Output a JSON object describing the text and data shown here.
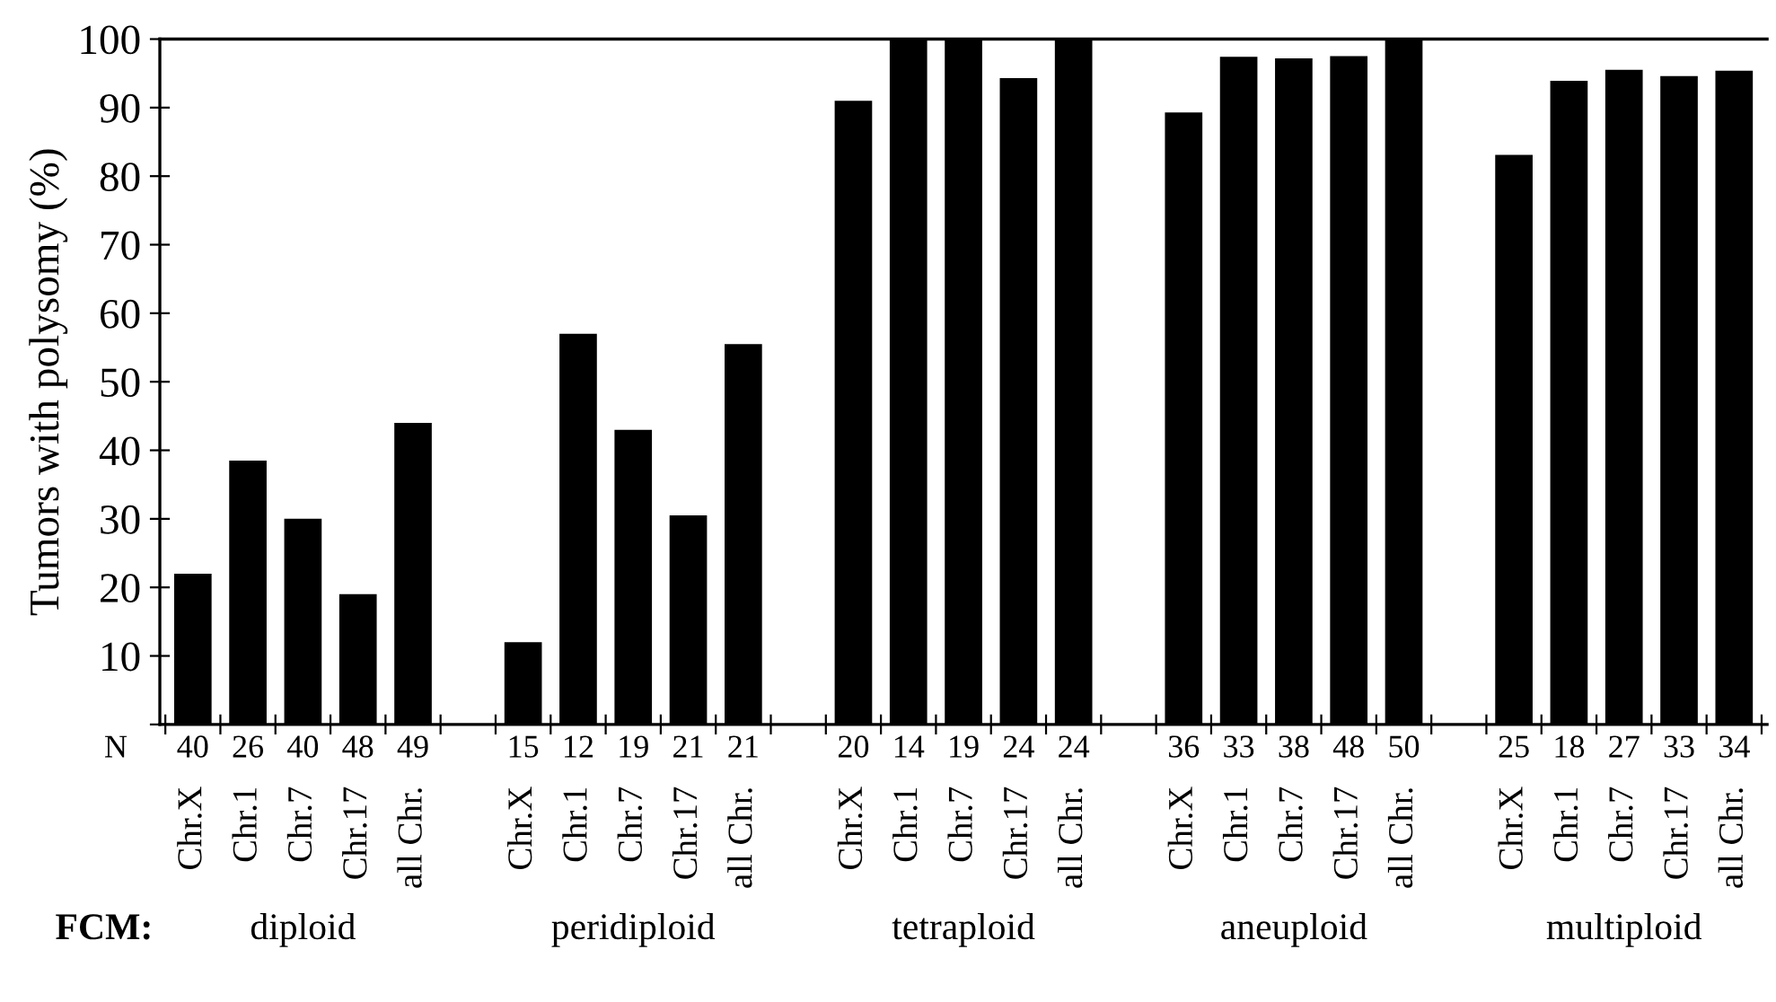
{
  "chart_data": {
    "type": "bar",
    "ylabel": "Tumors with polysomy (%)",
    "categories": [
      "Chr.X",
      "Chr.1",
      "Chr.7",
      "Chr.17",
      "all Chr.",
      null,
      "Chr.X",
      "Chr.1",
      "Chr.7",
      "Chr.17",
      "all Chr.",
      null,
      "Chr.X",
      "Chr.1",
      "Chr.7",
      "Chr.17",
      "all Chr.",
      null,
      "Chr.X",
      "Chr.1",
      "Chr.7",
      "Chr.17",
      "all Chr.",
      null,
      "Chr.X",
      "Chr.1",
      "Chr.7",
      "Chr.17",
      "all Chr."
    ],
    "values": [
      22,
      38.5,
      30,
      19,
      44,
      null,
      12,
      57,
      43,
      30.5,
      55.5,
      null,
      91,
      100,
      100,
      94.3,
      100,
      null,
      89.3,
      97.4,
      97.2,
      97.5,
      100,
      null,
      83.1,
      93.9,
      95.5,
      94.6,
      95.4
    ],
    "color": "#000000",
    "ylim": [
      0,
      100
    ],
    "yticks": [
      {
        "value": 0,
        "label": null
      },
      10,
      20,
      30,
      40,
      50,
      60,
      70,
      80,
      90,
      100
    ],
    "grid": false,
    "legend": false,
    "annotations": [
      "N",
      "40",
      "26",
      "40",
      "48",
      "49",
      "15",
      "12",
      "19",
      "21",
      "21",
      "20",
      "14",
      "19",
      "24",
      "24",
      "36",
      "33",
      "38",
      "48",
      "50",
      "25",
      "18",
      "27",
      "33",
      "34",
      "FCM:",
      "diploid",
      "peridiploid",
      "tetraploid",
      "aneuploid",
      "multiploid"
    ]
  }
}
